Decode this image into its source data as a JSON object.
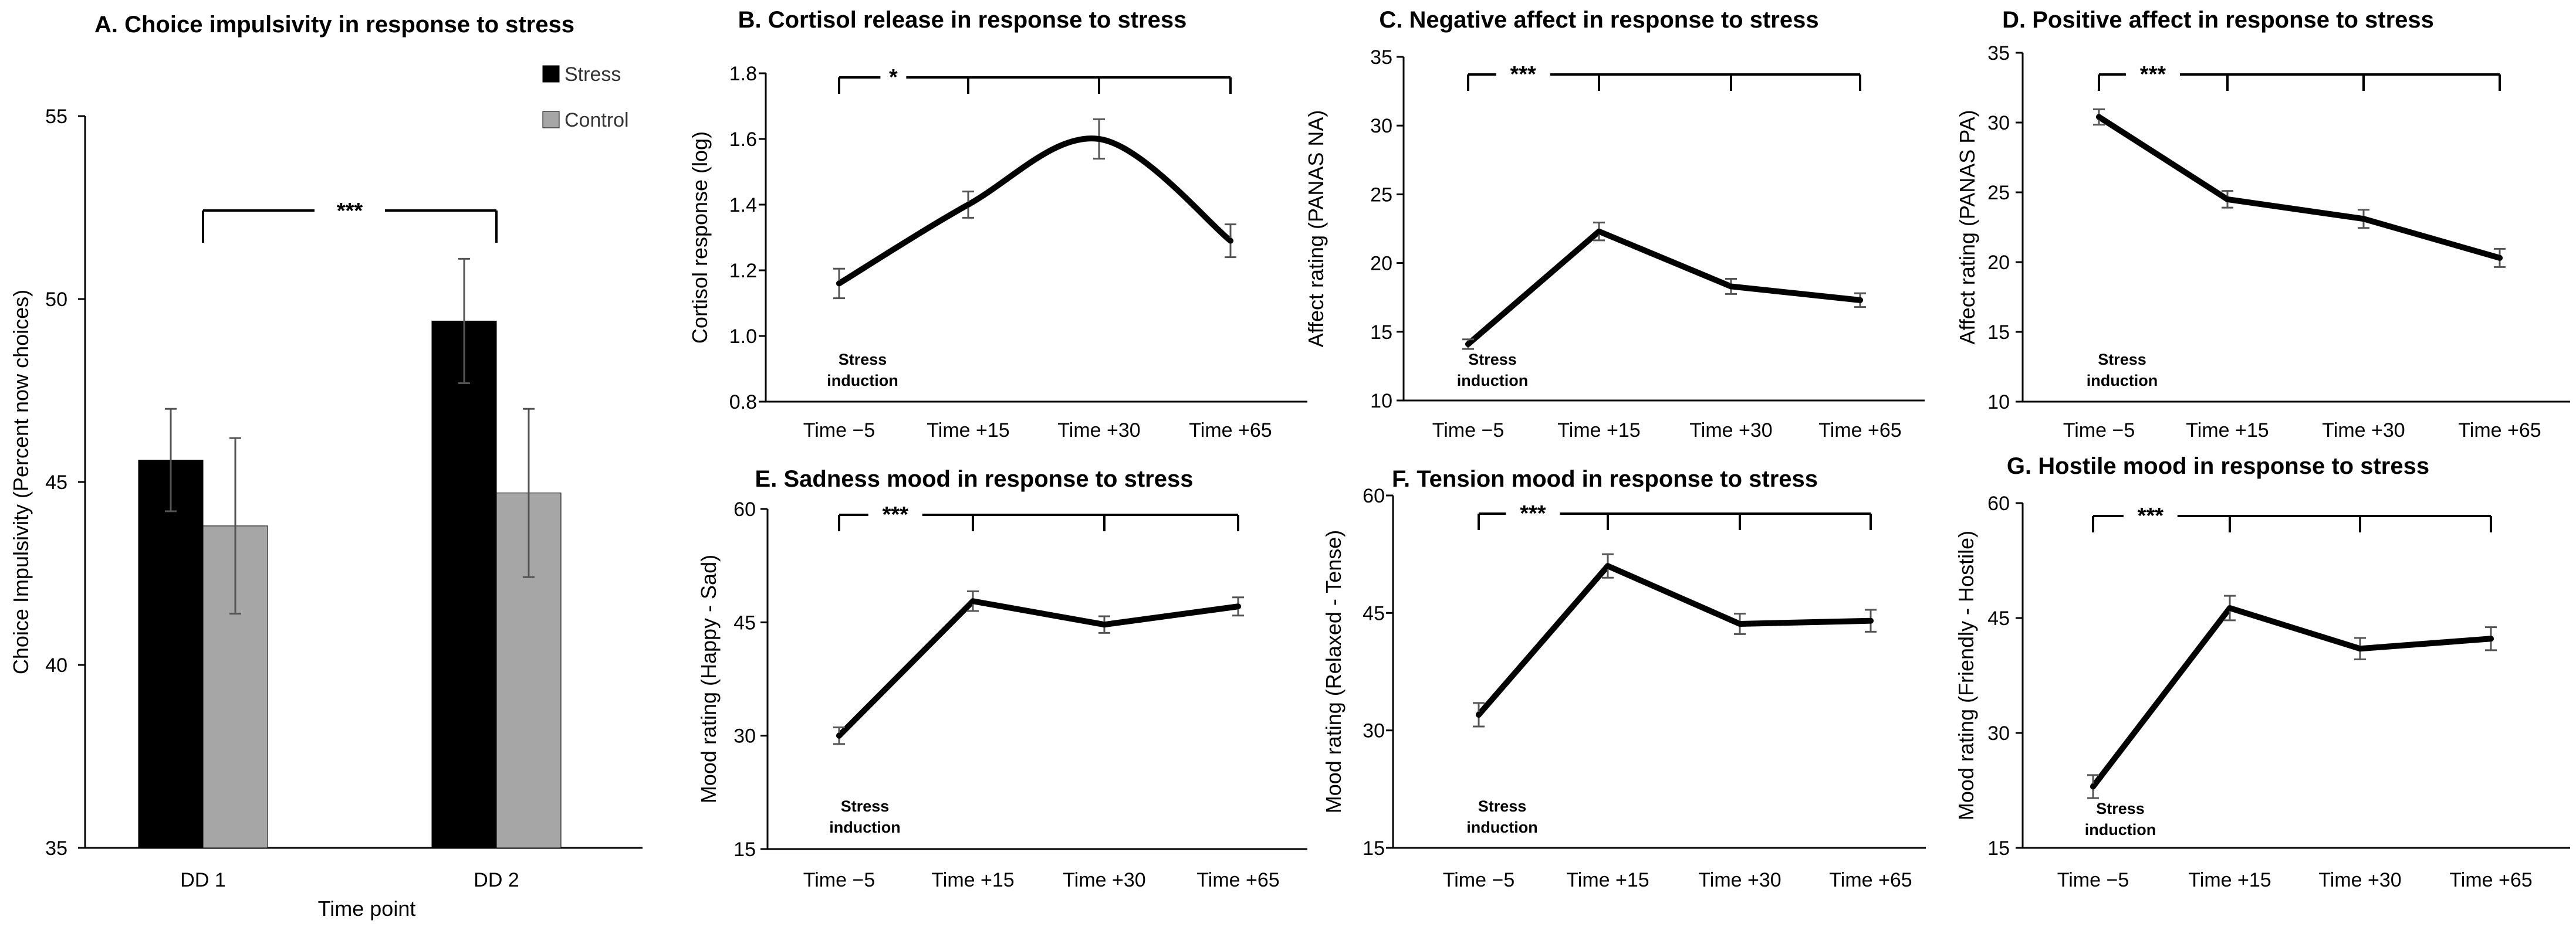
{
  "chart_data": [
    {
      "id": "A",
      "type": "bar",
      "title": "A. Choice impulsivity in response to stress",
      "xlabel": "Time point",
      "ylabel": "Choice Impulsivity (Percent now choices)",
      "categories": [
        "DD 1",
        "DD 2"
      ],
      "ylim": [
        35,
        55
      ],
      "yticks": [
        35,
        40,
        45,
        50,
        55
      ],
      "series": [
        {
          "name": "Stress",
          "color": "#000000",
          "values": [
            45.6,
            49.4
          ],
          "errors": [
            1.4,
            1.7
          ]
        },
        {
          "name": "Control",
          "color": "#a6a6a6",
          "values": [
            43.8,
            44.7
          ],
          "errors": [
            2.4,
            2.3
          ]
        }
      ],
      "legend_position": "top-right",
      "significance": {
        "label": "***",
        "between": [
          "DD 1",
          "DD 2"
        ]
      }
    },
    {
      "id": "B",
      "type": "line",
      "title": "B. Cortisol release in response to stress",
      "ylabel": "Cortisol response (log)",
      "categories": [
        "Time −5",
        "Time +15",
        "Time +30",
        "Time +65"
      ],
      "values": [
        1.16,
        1.4,
        1.6,
        1.29
      ],
      "errors": [
        0.045,
        0.04,
        0.06,
        0.05
      ],
      "ylim": [
        0.8,
        1.8
      ],
      "yticks": [
        "0.8",
        "1.0",
        "1.2",
        "1.4",
        "1.6",
        "1.8"
      ],
      "smooth": true,
      "significance": {
        "label": "*"
      },
      "annotation": [
        "Stress",
        "induction"
      ]
    },
    {
      "id": "C",
      "type": "line",
      "title": "C. Negative affect in response to stress",
      "ylabel": "Affect rating (PANAS NA)",
      "categories": [
        "Time −5",
        "Time +15",
        "Time +30",
        "Time +65"
      ],
      "values": [
        14.1,
        22.3,
        18.3,
        17.3
      ],
      "errors": [
        0.35,
        0.65,
        0.55,
        0.5
      ],
      "ylim": [
        10,
        35
      ],
      "yticks": [
        "10",
        "15",
        "20",
        "25",
        "30",
        "35"
      ],
      "smooth": false,
      "significance": {
        "label": "***"
      },
      "annotation": [
        "Stress",
        "induction"
      ]
    },
    {
      "id": "D",
      "type": "line",
      "title": "D. Positive affect in response to stress",
      "ylabel": "Affect rating (PANAS PA)",
      "categories": [
        "Time −5",
        "Time +15",
        "Time +30",
        "Time +65"
      ],
      "values": [
        30.4,
        24.5,
        23.1,
        20.3
      ],
      "errors": [
        0.55,
        0.6,
        0.65,
        0.65
      ],
      "ylim": [
        10,
        35
      ],
      "yticks": [
        "10",
        "15",
        "20",
        "25",
        "30",
        "35"
      ],
      "smooth": false,
      "significance": {
        "label": "***"
      },
      "annotation": [
        "Stress",
        "induction"
      ]
    },
    {
      "id": "E",
      "type": "line",
      "title": "E. Sadness mood in response to stress",
      "ylabel": "Mood rating (Happy - Sad)",
      "categories": [
        "Time −5",
        "Time +15",
        "Time +30",
        "Time +65"
      ],
      "values": [
        30.0,
        47.8,
        44.7,
        47.1
      ],
      "errors": [
        1.1,
        1.3,
        1.1,
        1.2
      ],
      "ylim": [
        15,
        60
      ],
      "yticks": [
        "15",
        "30",
        "45",
        "60"
      ],
      "smooth": false,
      "significance": {
        "label": "***"
      },
      "annotation": [
        "Stress",
        "induction"
      ]
    },
    {
      "id": "F",
      "type": "line",
      "title": "F. Tension mood in response to stress",
      "ylabel": "Mood rating (Relaxed - Tense)",
      "categories": [
        "Time −5",
        "Time +15",
        "Time +30",
        "Time +65"
      ],
      "values": [
        32.0,
        51.0,
        43.6,
        44.0
      ],
      "errors": [
        1.5,
        1.5,
        1.3,
        1.4
      ],
      "ylim": [
        15,
        60
      ],
      "yticks": [
        "15",
        "30",
        "45",
        "60"
      ],
      "smooth": false,
      "significance": {
        "label": "***"
      },
      "annotation": [
        "Stress",
        "induction"
      ]
    },
    {
      "id": "G",
      "type": "line",
      "title": "G. Hostile mood in response to stress",
      "ylabel": "Mood rating (Friendly - Hostile)",
      "categories": [
        "Time −5",
        "Time +15",
        "Time +30",
        "Time +65"
      ],
      "values": [
        23.0,
        46.3,
        41.0,
        42.3
      ],
      "errors": [
        1.5,
        1.6,
        1.4,
        1.5
      ],
      "ylim": [
        15,
        60
      ],
      "yticks": [
        "15",
        "30",
        "45",
        "60"
      ],
      "smooth": false,
      "significance": {
        "label": "***"
      },
      "annotation": [
        "Stress",
        "induction"
      ]
    }
  ]
}
